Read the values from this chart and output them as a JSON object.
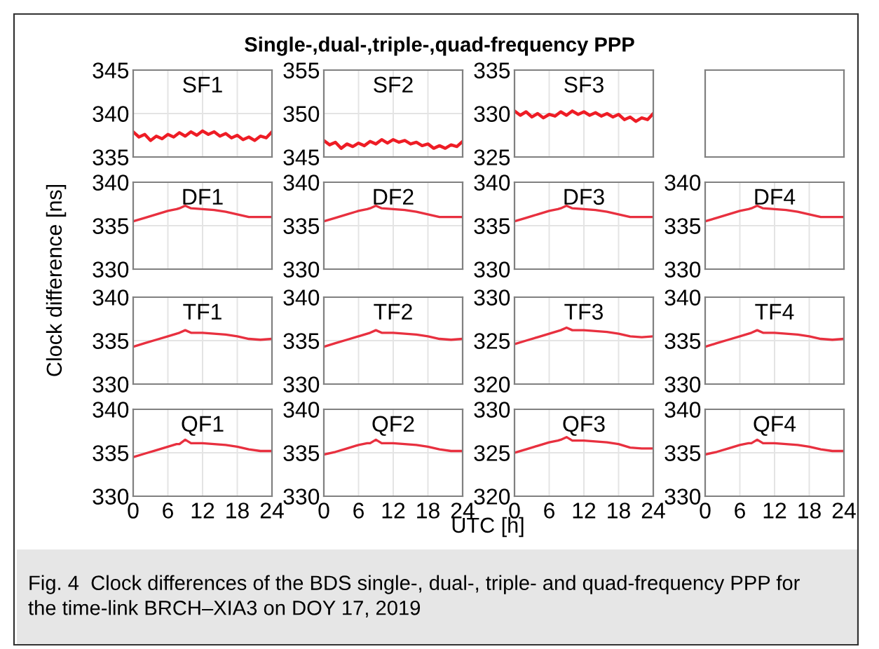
{
  "chart_data": [
    {
      "type": "other",
      "title": "Single-,dual-,triple-,quad-frequency PPP",
      "xlabel": "UTC [h]",
      "ylabel": "Clock difference [ns]",
      "annotations": [
        "Fig. 4  Clock differences of the BDS single-, dual-, triple- and quad-frequency PPP for the time-link BRCH–XIA3 on DOY 17, 2019"
      ]
    },
    {
      "type": "line",
      "title": "SF1",
      "xlim": [
        0,
        24
      ],
      "xticks": [
        0,
        6,
        12,
        18,
        24
      ],
      "ylim": [
        335,
        345
      ],
      "yticks": [
        335,
        340,
        345
      ],
      "grid": true,
      "tick_labels": "y",
      "series": [
        {
          "color": "#ee1c25",
          "x": [
            0,
            1,
            2,
            3,
            4,
            5,
            6,
            7,
            8,
            9,
            10,
            11,
            12,
            13,
            14,
            15,
            16,
            17,
            18,
            19,
            20,
            21,
            22,
            23,
            24
          ],
          "values": [
            337.9,
            337.3,
            337.6,
            336.9,
            337.4,
            337.1,
            337.6,
            337.3,
            337.8,
            337.4,
            337.9,
            337.5,
            338.0,
            337.6,
            337.9,
            337.4,
            337.7,
            337.2,
            337.5,
            337.0,
            337.3,
            336.9,
            337.4,
            337.2,
            337.9
          ]
        }
      ]
    },
    {
      "type": "line",
      "title": "SF2",
      "xlim": [
        0,
        24
      ],
      "xticks": [
        0,
        6,
        12,
        18,
        24
      ],
      "ylim": [
        345,
        355
      ],
      "yticks": [
        345,
        350,
        355
      ],
      "grid": true,
      "tick_labels": "y",
      "series": [
        {
          "color": "#ee1c25",
          "x": [
            0,
            1,
            2,
            3,
            4,
            5,
            6,
            7,
            8,
            9,
            10,
            11,
            12,
            13,
            14,
            15,
            16,
            17,
            18,
            19,
            20,
            21,
            22,
            23,
            24
          ],
          "values": [
            346.9,
            346.4,
            346.7,
            346.0,
            346.5,
            346.2,
            346.6,
            346.3,
            346.8,
            346.5,
            347.0,
            346.6,
            347.0,
            346.7,
            346.9,
            346.5,
            346.7,
            346.3,
            346.5,
            346.0,
            346.3,
            346.0,
            346.4,
            346.2,
            346.8
          ]
        }
      ]
    },
    {
      "type": "line",
      "title": "SF3",
      "xlim": [
        0,
        24
      ],
      "xticks": [
        0,
        6,
        12,
        18,
        24
      ],
      "ylim": [
        325,
        335
      ],
      "yticks": [
        325,
        330,
        335
      ],
      "grid": true,
      "tick_labels": "y",
      "series": [
        {
          "color": "#ee1c25",
          "x": [
            0,
            1,
            2,
            3,
            4,
            5,
            6,
            7,
            8,
            9,
            10,
            11,
            12,
            13,
            14,
            15,
            16,
            17,
            18,
            19,
            20,
            21,
            22,
            23,
            24
          ],
          "values": [
            330.3,
            329.8,
            330.2,
            329.6,
            330.0,
            329.5,
            329.9,
            329.7,
            330.2,
            329.8,
            330.3,
            329.9,
            330.2,
            329.8,
            330.1,
            329.7,
            330.0,
            329.6,
            329.9,
            329.3,
            329.6,
            329.1,
            329.5,
            329.3,
            330.0
          ]
        }
      ]
    },
    {
      "type": "other"
    },
    {
      "type": "line",
      "title": "DF1",
      "xlim": [
        0,
        24
      ],
      "xticks": [
        0,
        6,
        12,
        18,
        24
      ],
      "ylim": [
        330,
        340
      ],
      "yticks": [
        330,
        335,
        340
      ],
      "grid": true,
      "tick_labels": "y",
      "series": [
        {
          "color": "#e8303f",
          "x": [
            0,
            2,
            4,
            6,
            7.5,
            8,
            9,
            10,
            12,
            14,
            16,
            18,
            20,
            22,
            24
          ],
          "values": [
            335.5,
            335.9,
            336.3,
            336.7,
            336.9,
            337.0,
            337.3,
            337.0,
            336.9,
            336.8,
            336.6,
            336.3,
            336.0,
            336.0,
            336.0
          ]
        }
      ]
    },
    {
      "type": "line",
      "title": "DF2",
      "xlim": [
        0,
        24
      ],
      "xticks": [
        0,
        6,
        12,
        18,
        24
      ],
      "ylim": [
        330,
        340
      ],
      "yticks": [
        330,
        335,
        340
      ],
      "grid": true,
      "tick_labels": "y",
      "series": [
        {
          "color": "#e8303f",
          "x": [
            0,
            2,
            4,
            6,
            7.5,
            8,
            9,
            10,
            12,
            14,
            16,
            18,
            20,
            22,
            24
          ],
          "values": [
            335.5,
            335.9,
            336.3,
            336.7,
            336.9,
            337.0,
            337.3,
            337.0,
            336.9,
            336.8,
            336.6,
            336.3,
            336.0,
            336.0,
            336.0
          ]
        }
      ]
    },
    {
      "type": "line",
      "title": "DF3",
      "xlim": [
        0,
        24
      ],
      "xticks": [
        0,
        6,
        12,
        18,
        24
      ],
      "ylim": [
        330,
        340
      ],
      "yticks": [
        330,
        335,
        340
      ],
      "grid": true,
      "tick_labels": "y",
      "series": [
        {
          "color": "#e8303f",
          "x": [
            0,
            2,
            4,
            6,
            7.5,
            8,
            9,
            10,
            12,
            14,
            16,
            18,
            20,
            22,
            24
          ],
          "values": [
            335.5,
            335.9,
            336.3,
            336.7,
            336.9,
            337.0,
            337.3,
            337.0,
            336.9,
            336.8,
            336.6,
            336.3,
            336.0,
            336.0,
            336.0
          ]
        }
      ]
    },
    {
      "type": "line",
      "title": "DF4",
      "xlim": [
        0,
        24
      ],
      "xticks": [
        0,
        6,
        12,
        18,
        24
      ],
      "ylim": [
        330,
        340
      ],
      "yticks": [
        330,
        335,
        340
      ],
      "grid": true,
      "tick_labels": "y",
      "series": [
        {
          "color": "#e8303f",
          "x": [
            0,
            2,
            4,
            6,
            7.5,
            8,
            9,
            10,
            12,
            14,
            16,
            18,
            20,
            22,
            24
          ],
          "values": [
            335.5,
            335.9,
            336.3,
            336.7,
            336.9,
            337.0,
            337.3,
            337.0,
            336.9,
            336.8,
            336.6,
            336.3,
            336.0,
            336.0,
            336.0
          ]
        }
      ]
    },
    {
      "type": "line",
      "title": "TF1",
      "xlim": [
        0,
        24
      ],
      "xticks": [
        0,
        6,
        12,
        18,
        24
      ],
      "ylim": [
        330,
        340
      ],
      "yticks": [
        330,
        335,
        340
      ],
      "grid": true,
      "tick_labels": "y",
      "series": [
        {
          "color": "#e8303f",
          "x": [
            0,
            2,
            4,
            6,
            7.5,
            8,
            9,
            10,
            12,
            14,
            16,
            18,
            20,
            22,
            24
          ],
          "values": [
            334.3,
            334.7,
            335.1,
            335.5,
            335.8,
            335.9,
            336.2,
            335.9,
            335.9,
            335.8,
            335.7,
            335.5,
            335.2,
            335.1,
            335.2
          ]
        }
      ]
    },
    {
      "type": "line",
      "title": "TF2",
      "xlim": [
        0,
        24
      ],
      "xticks": [
        0,
        6,
        12,
        18,
        24
      ],
      "ylim": [
        330,
        340
      ],
      "yticks": [
        330,
        335,
        340
      ],
      "grid": true,
      "tick_labels": "y",
      "series": [
        {
          "color": "#e8303f",
          "x": [
            0,
            2,
            4,
            6,
            7.5,
            8,
            9,
            10,
            12,
            14,
            16,
            18,
            20,
            22,
            24
          ],
          "values": [
            334.3,
            334.7,
            335.1,
            335.5,
            335.8,
            335.9,
            336.2,
            335.9,
            335.9,
            335.8,
            335.7,
            335.5,
            335.2,
            335.1,
            335.2
          ]
        }
      ]
    },
    {
      "type": "line",
      "title": "TF3",
      "xlim": [
        0,
        24
      ],
      "xticks": [
        0,
        6,
        12,
        18,
        24
      ],
      "ylim": [
        320,
        330
      ],
      "yticks": [
        320,
        325,
        330
      ],
      "grid": true,
      "tick_labels": "y",
      "series": [
        {
          "color": "#e8303f",
          "x": [
            0,
            2,
            4,
            6,
            7.5,
            8,
            9,
            10,
            12,
            14,
            16,
            18,
            20,
            22,
            24
          ],
          "values": [
            324.6,
            325.0,
            325.4,
            325.8,
            326.1,
            326.2,
            326.5,
            326.2,
            326.2,
            326.1,
            326.0,
            325.8,
            325.5,
            325.4,
            325.5
          ]
        }
      ]
    },
    {
      "type": "line",
      "title": "TF4",
      "xlim": [
        0,
        24
      ],
      "xticks": [
        0,
        6,
        12,
        18,
        24
      ],
      "ylim": [
        330,
        340
      ],
      "yticks": [
        330,
        335,
        340
      ],
      "grid": true,
      "tick_labels": "y",
      "series": [
        {
          "color": "#e8303f",
          "x": [
            0,
            2,
            4,
            6,
            7.5,
            8,
            9,
            10,
            12,
            14,
            16,
            18,
            20,
            22,
            24
          ],
          "values": [
            334.3,
            334.7,
            335.1,
            335.5,
            335.8,
            335.9,
            336.2,
            335.9,
            335.9,
            335.8,
            335.7,
            335.5,
            335.2,
            335.1,
            335.2
          ]
        }
      ]
    },
    {
      "type": "line",
      "title": "QF1",
      "xlim": [
        0,
        24
      ],
      "xticks": [
        0,
        6,
        12,
        18,
        24
      ],
      "ylim": [
        330,
        340
      ],
      "yticks": [
        330,
        335,
        340
      ],
      "grid": true,
      "series": [
        {
          "color": "#e8303f",
          "x": [
            0,
            2,
            4,
            6,
            7.5,
            8,
            9,
            10,
            12,
            14,
            16,
            18,
            20,
            22,
            24
          ],
          "values": [
            334.5,
            334.9,
            335.3,
            335.7,
            336.0,
            336.0,
            336.5,
            336.1,
            336.1,
            336.0,
            335.9,
            335.7,
            335.4,
            335.2,
            335.2
          ]
        }
      ]
    },
    {
      "type": "line",
      "title": "QF2",
      "xlim": [
        0,
        24
      ],
      "xticks": [
        0,
        6,
        12,
        18,
        24
      ],
      "ylim": [
        330,
        340
      ],
      "yticks": [
        330,
        335,
        340
      ],
      "grid": true,
      "series": [
        {
          "color": "#e8303f",
          "x": [
            0,
            2,
            4,
            6,
            7.5,
            8,
            9,
            10,
            12,
            14,
            16,
            18,
            20,
            22,
            24
          ],
          "values": [
            334.8,
            335.1,
            335.5,
            335.9,
            336.1,
            336.1,
            336.5,
            336.1,
            336.1,
            336.0,
            335.9,
            335.7,
            335.4,
            335.2,
            335.2
          ]
        }
      ]
    },
    {
      "type": "line",
      "title": "QF3",
      "xlim": [
        0,
        24
      ],
      "xticks": [
        0,
        6,
        12,
        18,
        24
      ],
      "ylim": [
        320,
        330
      ],
      "yticks": [
        320,
        325,
        330
      ],
      "grid": true,
      "series": [
        {
          "color": "#e8303f",
          "x": [
            0,
            2,
            4,
            6,
            7.5,
            8,
            9,
            10,
            12,
            14,
            16,
            18,
            20,
            22,
            24
          ],
          "values": [
            325.0,
            325.4,
            325.8,
            326.2,
            326.4,
            326.5,
            326.8,
            326.4,
            326.4,
            326.3,
            326.2,
            326.0,
            325.6,
            325.5,
            325.5
          ]
        }
      ]
    },
    {
      "type": "line",
      "title": "QF4",
      "xlim": [
        0,
        24
      ],
      "xticks": [
        0,
        6,
        12,
        18,
        24
      ],
      "ylim": [
        330,
        340
      ],
      "yticks": [
        330,
        335,
        340
      ],
      "grid": true,
      "series": [
        {
          "color": "#e8303f",
          "x": [
            0,
            2,
            4,
            6,
            7.5,
            8,
            9,
            10,
            12,
            14,
            16,
            18,
            20,
            22,
            24
          ],
          "values": [
            334.8,
            335.1,
            335.5,
            335.9,
            336.1,
            336.1,
            336.5,
            336.1,
            336.1,
            336.0,
            335.9,
            335.7,
            335.4,
            335.2,
            335.2
          ]
        }
      ]
    }
  ]
}
